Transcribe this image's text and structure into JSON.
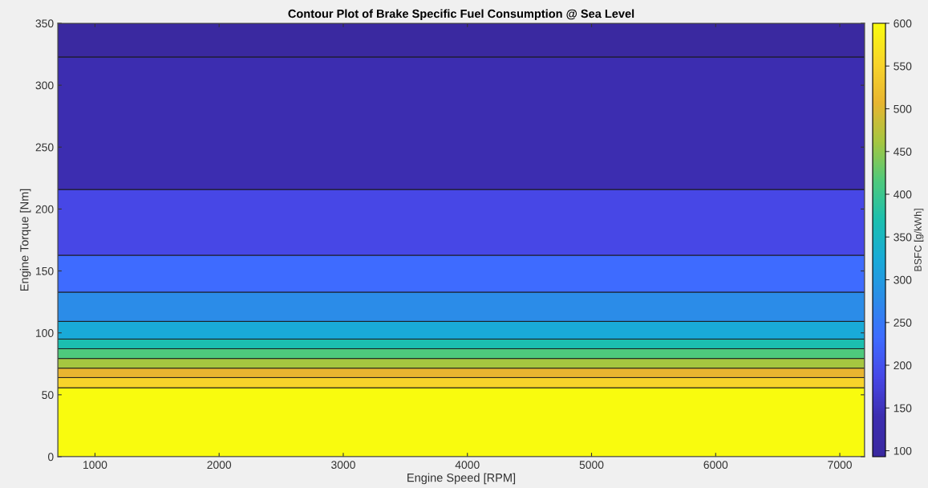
{
  "chart_data": {
    "type": "area",
    "stacked": true,
    "title": "Contour Plot of Brake Specific Fuel Consumption @ Sea Level",
    "xlabel": "Engine Speed [RPM]",
    "ylabel": "Engine Torque [Nm]",
    "clabel": "BSFC [g/kWh]",
    "x": [
      700,
      7200
    ],
    "series": [
      {
        "color": "#f9fb0e",
        "values": [
          55.7,
          55.7
        ]
      },
      {
        "color": "#f8d42a",
        "values": [
          8.2,
          8.2
        ]
      },
      {
        "color": "#e8b530",
        "values": [
          7.6,
          7.6
        ]
      },
      {
        "color": "#a5c640",
        "values": [
          7.8,
          7.8
        ]
      },
      {
        "color": "#4ec97c",
        "values": [
          7.9,
          7.9
        ]
      },
      {
        "color": "#1bbfaf",
        "values": [
          7.8,
          7.8
        ]
      },
      {
        "color": "#19aad8",
        "values": [
          14.3,
          14.3
        ]
      },
      {
        "color": "#2b8ce8",
        "values": [
          23.6,
          23.6
        ]
      },
      {
        "color": "#3e6bff",
        "values": [
          29.8,
          29.8
        ]
      },
      {
        "color": "#4747e6",
        "values": [
          53.1,
          53.1
        ]
      },
      {
        "color": "#3c2db0",
        "values": [
          107,
          107
        ]
      },
      {
        "color": "#3a29a0",
        "values": [
          27.2,
          27.2
        ]
      }
    ],
    "xlim": [
      700,
      7200
    ],
    "xticks": [
      1000,
      2000,
      3000,
      4000,
      5000,
      6000,
      7000
    ],
    "ylim": [
      0,
      350
    ],
    "yticks": [
      0,
      50,
      100,
      150,
      200,
      250,
      300,
      350
    ],
    "clim": [
      93,
      600
    ],
    "cticks": [
      100,
      150,
      200,
      250,
      300,
      350,
      400,
      450,
      500,
      550,
      600
    ],
    "grid": false,
    "legend": false
  }
}
